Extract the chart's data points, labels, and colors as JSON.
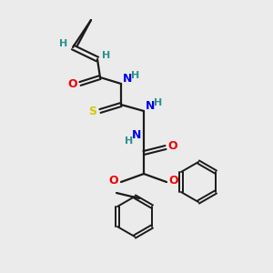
{
  "bg_color": "#ebebeb",
  "colors": {
    "bond": "#1a1a1a",
    "H": "#2a9090",
    "N": "#0000ee",
    "O": "#ee0000",
    "S": "#cccc00"
  }
}
